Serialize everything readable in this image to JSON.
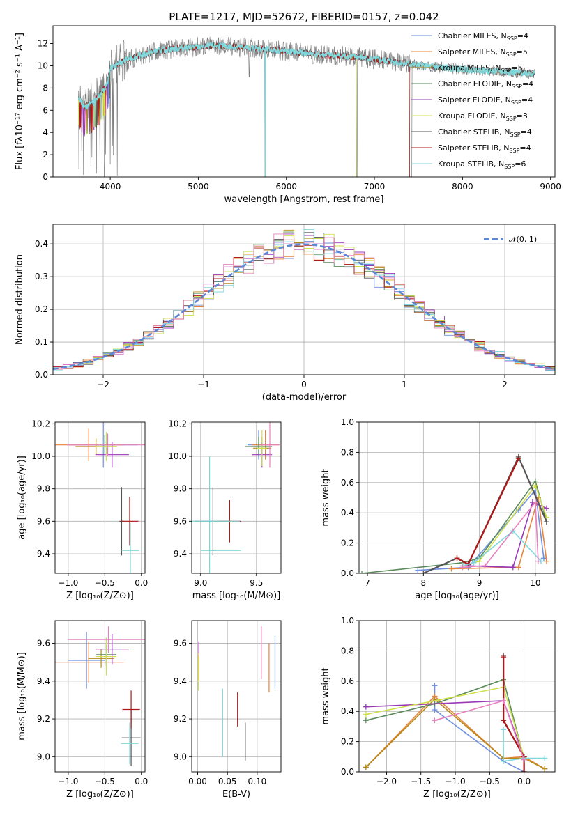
{
  "title": "PLATE=1217, MJD=52672, FIBERID=0157, z=0.042",
  "colors": {
    "Chabrier MILES": "#6f8fe0",
    "Salpeter MILES": "#e8843a",
    "Kroupa MILES": "#b58a1a",
    "Chabrier ELODIE": "#5a8a5a",
    "Salpeter ELODIE": "#9a38b8",
    "Kroupa ELODIE": "#cfe04a",
    "Chabrier STELIB": "#555555",
    "Salpeter STELIB": "#b01818",
    "Kroupa STELIB": "#80d8dc",
    "data": "#808080",
    "pink": "#e880c0",
    "gauss": "#5b87d6"
  },
  "chart_data": [
    {
      "id": "spectrum",
      "type": "line",
      "xlabel": "wavelength [Angstrom, rest frame]",
      "ylabel": "Flux [fλ10⁻¹⁷ erg cm⁻² s⁻¹ A⁻¹]",
      "xlim": [
        3350,
        9050
      ],
      "ylim": [
        0,
        13.6
      ],
      "xticks": [
        4000,
        5000,
        6000,
        7000,
        8000,
        9000
      ],
      "yticks": [
        0,
        2,
        4,
        6,
        8,
        10,
        12
      ],
      "legend_position": "top-right",
      "legend": [
        {
          "name": "Chabrier MILES, N",
          "sub": "SSP",
          "suffix": "=4"
        },
        {
          "name": "Salpeter MILES, N",
          "sub": "SSP",
          "suffix": "=5"
        },
        {
          "name": "Kroupa MILES, N",
          "sub": "SSP",
          "suffix": "=5"
        },
        {
          "name": "Chabrier ELODIE, N",
          "sub": "SSP",
          "suffix": "=4"
        },
        {
          "name": "Salpeter ELODIE, N",
          "sub": "SSP",
          "suffix": "=4"
        },
        {
          "name": "Kroupa ELODIE, N",
          "sub": "SSP",
          "suffix": "=3"
        },
        {
          "name": "Chabrier STELIB, N",
          "sub": "SSP",
          "suffix": "=4"
        },
        {
          "name": "Salpeter STELIB, N",
          "sub": "SSP",
          "suffix": "=4"
        },
        {
          "name": "Kroupa STELIB, N",
          "sub": "SSP",
          "suffix": "=6"
        }
      ],
      "continuum_points": [
        [
          3640,
          7.2
        ],
        [
          3700,
          6.3
        ],
        [
          3800,
          6.7
        ],
        [
          3900,
          7.6
        ],
        [
          3960,
          8.3
        ],
        [
          4000,
          9.8
        ],
        [
          4200,
          10.6
        ],
        [
          4500,
          11.3
        ],
        [
          4800,
          11.6
        ],
        [
          5200,
          11.8
        ],
        [
          5600,
          11.6
        ],
        [
          6000,
          11.3
        ],
        [
          6400,
          11.0
        ],
        [
          6800,
          10.8
        ],
        [
          7200,
          10.4
        ],
        [
          7420,
          10.1
        ],
        [
          7800,
          9.8
        ],
        [
          8200,
          9.6
        ],
        [
          8600,
          9.4
        ],
        [
          8820,
          9.3
        ]
      ],
      "notable_features": [
        [
          3933,
          0
        ],
        [
          4861,
          11.0
        ],
        [
          5577,
          9.0
        ],
        [
          5760,
          0
        ],
        [
          6300,
          10.2
        ],
        [
          6563,
          10.1
        ],
        [
          6800,
          0
        ],
        [
          7420,
          0
        ]
      ]
    },
    {
      "id": "residual_histogram",
      "type": "histogram",
      "xlabel": "(data-model)/error",
      "ylabel": "Normed distribution",
      "xlim": [
        -2.5,
        2.5
      ],
      "ylim": [
        0,
        0.46
      ],
      "xticks": [
        -2,
        -1,
        0,
        1,
        2
      ],
      "yticks": [
        0.0,
        0.1,
        0.2,
        0.3,
        0.4
      ],
      "bin_width": 0.1,
      "legend": "𝒩(0, 1)",
      "legend_position": "top-right",
      "grid": true
    },
    {
      "id": "age_vs_Z",
      "type": "errorbar",
      "xlabel": "Z [log₁₀(Z/Z⊙)]",
      "ylabel": "age  [log₁₀(age/yr)]",
      "xlim": [
        -1.18,
        0.05
      ],
      "ylim": [
        9.28,
        10.21
      ],
      "xticks": [
        -1.0,
        -0.5,
        0.0
      ],
      "yticks": [
        9.4,
        9.6,
        9.8,
        10.0,
        10.2
      ],
      "grid": true,
      "points": [
        {
          "series": "Chabrier MILES",
          "x": -0.52,
          "xerr": 0.47,
          "y": 10.07,
          "yerr": 0.14
        },
        {
          "series": "Salpeter MILES",
          "x": -0.72,
          "xerr": 0.48,
          "y": 10.07,
          "yerr": 0.1
        },
        {
          "series": "Kroupa MILES",
          "x": -0.62,
          "xerr": 0.28,
          "y": 10.06,
          "yerr": 0.05
        },
        {
          "series": "Chabrier ELODIE",
          "x": -0.5,
          "xerr": 0.14,
          "y": 10.07,
          "yerr": 0.06
        },
        {
          "series": "Salpeter ELODIE",
          "x": -0.4,
          "xerr": 0.23,
          "y": 10.01,
          "yerr": 0.08
        },
        {
          "series": "Kroupa ELODIE",
          "x": -0.48,
          "xerr": 0.15,
          "y": 10.06,
          "yerr": 0.09
        },
        {
          "series": "Chabrier STELIB",
          "x": -0.27,
          "xerr": 0.03,
          "y": 9.6,
          "yerr": 0.21
        },
        {
          "series": "Salpeter STELIB",
          "x": -0.16,
          "xerr": 0.12,
          "y": 9.6,
          "yerr": 0.15
        },
        {
          "series": "Kroupa STELIB",
          "x": -0.15,
          "xerr": 0.12,
          "y": 9.42,
          "yerr": 0.17
        },
        {
          "series": "pink",
          "x": -0.46,
          "xerr": 0.56,
          "y": 10.07,
          "yerr": 0.07
        }
      ]
    },
    {
      "id": "age_vs_mass",
      "type": "errorbar",
      "xlabel": "mass [log₁₀(M/M⊙)]",
      "ylabel": "",
      "xlim": [
        8.92,
        9.72
      ],
      "ylim": [
        9.28,
        10.21
      ],
      "xticks": [
        9.0,
        9.5
      ],
      "yticks": [
        9.4,
        9.6,
        9.8,
        10.0,
        10.2
      ],
      "grid": true,
      "points": [
        {
          "series": "Chabrier MILES",
          "x": 9.52,
          "xerr": 0.1,
          "y": 10.07,
          "yerr": 0.09
        },
        {
          "series": "Salpeter MILES",
          "x": 9.58,
          "xerr": 0.12,
          "y": 10.07,
          "yerr": 0.09
        },
        {
          "series": "Kroupa MILES",
          "x": 9.55,
          "xerr": 0.08,
          "y": 10.05,
          "yerr": 0.07
        },
        {
          "series": "Chabrier ELODIE",
          "x": 9.52,
          "xerr": 0.12,
          "y": 10.06,
          "yerr": 0.06
        },
        {
          "series": "Salpeter ELODIE",
          "x": 9.55,
          "xerr": 0.09,
          "y": 10.01,
          "yerr": 0.08
        },
        {
          "series": "Kroupa ELODIE",
          "x": 9.55,
          "xerr": 0.04,
          "y": 10.05,
          "yerr": 0.11
        },
        {
          "series": "Chabrier STELIB",
          "x": 9.11,
          "xerr": 0.16,
          "y": 9.6,
          "yerr": 0.21
        },
        {
          "series": "Salpeter STELIB",
          "x": 9.26,
          "xerr": 0.1,
          "y": 9.6,
          "yerr": 0.13
        },
        {
          "series": "Kroupa STELIB",
          "x": 9.08,
          "xerr": 0.27,
          "y": 9.6,
          "yerr": 0.4
        },
        {
          "series": "Kroupa STELIB",
          "x": 9.18,
          "xerr": 0.18,
          "y": 9.42,
          "yerr": 0.0
        },
        {
          "series": "pink",
          "x": 9.62,
          "xerr": 0.09,
          "y": 10.07,
          "yerr": 0.14
        }
      ]
    },
    {
      "id": "mass_weight_vs_age",
      "type": "line",
      "xlabel": "age  [log₁₀(age/yr)]",
      "ylabel": "mass weight",
      "xlim": [
        6.85,
        10.35
      ],
      "ylim": [
        0,
        1.0
      ],
      "xticks": [
        7,
        8,
        9,
        10
      ],
      "yticks": [
        0.0,
        0.2,
        0.4,
        0.6,
        0.8,
        1.0
      ],
      "grid": true,
      "series": [
        {
          "name": "Chabrier MILES",
          "x": [
            7.9,
            8.8,
            9.7,
            10.0,
            10.15
          ],
          "y": [
            0.02,
            0.04,
            0.42,
            0.55,
            0.1
          ]
        },
        {
          "name": "Salpeter MILES",
          "x": [
            8.5,
            9.7,
            10.05,
            10.2
          ],
          "y": [
            0.03,
            0.04,
            0.5,
            0.08
          ]
        },
        {
          "name": "Chabrier ELODIE",
          "x": [
            6.9,
            8.7,
            9.0,
            10.0,
            10.2
          ],
          "y": [
            0.0,
            0.07,
            0.1,
            0.61,
            0.34
          ]
        },
        {
          "name": "Salpeter ELODIE",
          "x": [
            8.7,
            9.6,
            9.95,
            10.2
          ],
          "y": [
            0.05,
            0.04,
            0.47,
            0.43
          ]
        },
        {
          "name": "Kroupa ELODIE",
          "x": [
            8.7,
            9.0,
            10.0,
            10.2
          ],
          "y": [
            0.05,
            0.08,
            0.58,
            0.37
          ]
        },
        {
          "name": "Chabrier STELIB",
          "x": [
            8.0,
            8.6,
            8.8,
            9.7,
            10.2
          ],
          "y": [
            0.0,
            0.1,
            0.06,
            0.77,
            0.34
          ]
        },
        {
          "name": "Salpeter STELIB",
          "x": [
            8.6,
            8.8,
            9.7
          ],
          "y": [
            0.1,
            0.06,
            0.76
          ]
        },
        {
          "name": "Kroupa STELIB",
          "x": [
            8.7,
            8.9,
            9.6,
            10.1
          ],
          "y": [
            0.05,
            0.07,
            0.28,
            0.08
          ]
        },
        {
          "name": "pink",
          "x": [
            8.7,
            9.1,
            10.0,
            10.05
          ],
          "y": [
            0.04,
            0.05,
            0.47,
            0.08
          ]
        }
      ]
    },
    {
      "id": "mass_vs_Z",
      "type": "errorbar",
      "xlabel": "Z [log₁₀(Z/Z⊙)]",
      "ylabel": "mass [log₁₀(M/M⊙)]",
      "xlim": [
        -1.18,
        0.05
      ],
      "ylim": [
        8.92,
        9.72
      ],
      "xticks": [
        -1.0,
        -0.5,
        0.0
      ],
      "yticks": [
        9.0,
        9.2,
        9.4,
        9.6
      ],
      "grid": true,
      "points": [
        {
          "series": "Chabrier MILES",
          "x": -0.75,
          "xerr": 0.25,
          "y": 9.51,
          "yerr": 0.15
        },
        {
          "series": "Salpeter MILES",
          "x": -0.72,
          "xerr": 0.48,
          "y": 9.5,
          "yerr": 0.11
        },
        {
          "series": "Kroupa MILES",
          "x": -0.55,
          "xerr": 0.18,
          "y": 9.52,
          "yerr": 0.05
        },
        {
          "series": "Chabrier ELODIE",
          "x": -0.48,
          "xerr": 0.14,
          "y": 9.54,
          "yerr": 0.06
        },
        {
          "series": "Salpeter ELODIE",
          "x": -0.4,
          "xerr": 0.23,
          "y": 9.57,
          "yerr": 0.08
        },
        {
          "series": "Kroupa ELODIE",
          "x": -0.48,
          "xerr": 0.14,
          "y": 9.53,
          "yerr": 0.1
        },
        {
          "series": "Chabrier STELIB",
          "x": -0.14,
          "xerr": 0.13,
          "y": 9.1,
          "yerr": 0.15
        },
        {
          "series": "Salpeter STELIB",
          "x": -0.14,
          "xerr": 0.12,
          "y": 9.25,
          "yerr": 0.1
        },
        {
          "series": "Kroupa STELIB",
          "x": -0.16,
          "xerr": 0.12,
          "y": 9.07,
          "yerr": 0.11
        },
        {
          "series": "pink",
          "x": -0.45,
          "xerr": 0.56,
          "y": 9.62,
          "yerr": 0.07
        }
      ]
    },
    {
      "id": "mass_vs_EBV",
      "type": "errorbar",
      "xlabel": "E(B-V)",
      "ylabel": "",
      "xlim": [
        -0.01,
        0.14
      ],
      "ylim": [
        8.92,
        9.72
      ],
      "xticks": [
        0.0,
        0.05,
        0.1
      ],
      "yticks": [
        9.0,
        9.2,
        9.4,
        9.6
      ],
      "grid": true,
      "points": [
        {
          "series": "Chabrier MILES",
          "x": 0.13,
          "xerr": 0.0,
          "y": 9.5,
          "yerr": 0.14
        },
        {
          "series": "Salpeter MILES",
          "x": 0.12,
          "xerr": 0.0,
          "y": 9.47,
          "yerr": 0.13
        },
        {
          "series": "Kroupa MILES",
          "x": 0.002,
          "xerr": 0.0,
          "y": 9.5,
          "yerr": 0.1
        },
        {
          "series": "Salpeter ELODIE",
          "x": 0.002,
          "xerr": 0.0,
          "y": 9.57,
          "yerr": 0.04
        },
        {
          "series": "Kroupa ELODIE",
          "x": 0.001,
          "xerr": 0.0,
          "y": 9.45,
          "yerr": 0.1
        },
        {
          "series": "Chabrier STELIB",
          "x": 0.08,
          "xerr": 0.0,
          "y": 9.08,
          "yerr": 0.1
        },
        {
          "series": "Salpeter STELIB",
          "x": 0.067,
          "xerr": 0.0,
          "y": 9.25,
          "yerr": 0.09
        },
        {
          "series": "Kroupa STELIB",
          "x": 0.042,
          "xerr": 0.0,
          "y": 9.18,
          "yerr": 0.18
        },
        {
          "series": "pink",
          "x": 0.107,
          "xerr": 0.0,
          "y": 9.55,
          "yerr": 0.14
        }
      ]
    },
    {
      "id": "mass_weight_vs_Z",
      "type": "line",
      "xlabel": "Z [log₁₀(Z/Z⊙)]",
      "ylabel": "mass weight",
      "xlim": [
        -2.4,
        0.45
      ],
      "ylim": [
        0,
        1.0
      ],
      "xticks": [
        -2.0,
        -1.5,
        -1.0,
        -0.5,
        0.0
      ],
      "yticks": [
        0.0,
        0.2,
        0.4,
        0.6,
        0.8,
        1.0
      ],
      "grid": true,
      "series": [
        {
          "name": "Chabrier MILES",
          "x": [
            -1.3,
            -1.3,
            -0.3,
            0.0
          ],
          "y": [
            0.57,
            0.41,
            0.07,
            0.0
          ]
        },
        {
          "name": "Salpeter MILES",
          "x": [
            -2.3,
            -1.3,
            -0.3,
            0.0,
            0.3
          ],
          "y": [
            0.03,
            0.5,
            0.09,
            0.1,
            0.02
          ]
        },
        {
          "name": "Kroupa MILES",
          "x": [
            -2.3,
            -1.3,
            -0.3,
            0.0,
            0.3
          ],
          "y": [
            0.03,
            0.48,
            0.09,
            0.09,
            0.02
          ]
        },
        {
          "name": "Chabrier ELODIE",
          "x": [
            -2.3,
            -1.3,
            -0.3,
            0.0
          ],
          "y": [
            0.34,
            0.45,
            0.61,
            0.09
          ]
        },
        {
          "name": "Salpeter ELODIE",
          "x": [
            -2.3,
            -0.3,
            0.0
          ],
          "y": [
            0.43,
            0.47,
            0.1
          ]
        },
        {
          "name": "Kroupa ELODIE",
          "x": [
            -2.3,
            -0.3,
            0.0
          ],
          "y": [
            0.38,
            0.56,
            0.1
          ]
        },
        {
          "name": "Chabrier STELIB",
          "x": [
            -0.3,
            -0.3,
            0.0,
            0.0
          ],
          "y": [
            0.77,
            0.34,
            0.1,
            0.0
          ]
        },
        {
          "name": "Salpeter STELIB",
          "x": [
            -0.3,
            -0.3,
            0.0,
            0.0
          ],
          "y": [
            0.76,
            0.34,
            0.1,
            0.0
          ]
        },
        {
          "name": "Kroupa STELIB",
          "x": [
            -0.3,
            -0.3,
            0.0,
            0.3
          ],
          "y": [
            0.28,
            0.07,
            0.09,
            0.09
          ]
        },
        {
          "name": "pink",
          "x": [
            -1.3,
            -0.3,
            0.0
          ],
          "y": [
            0.34,
            0.47,
            0.08
          ]
        }
      ]
    }
  ]
}
